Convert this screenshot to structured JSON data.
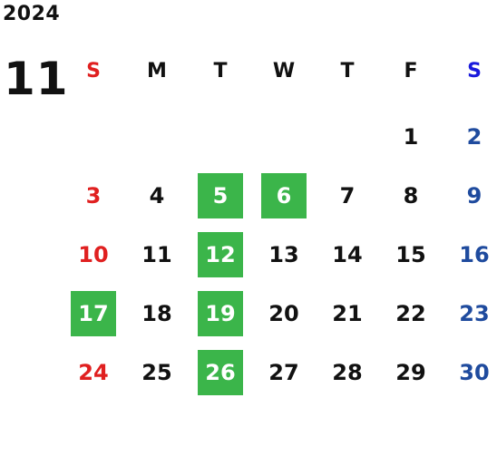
{
  "calendar": {
    "year": "2024",
    "month": "11",
    "weekdays": [
      "S",
      "M",
      "T",
      "W",
      "T",
      "F",
      "S"
    ],
    "weekday_colors": {
      "sunday": "#e02020",
      "saturday_header": "#1a1adc",
      "saturday": "#1f4b9e",
      "weekday": "#111111",
      "highlight_bg": "#3bb54a",
      "highlight_text": "#ffffff"
    },
    "first_weekday_index": 5,
    "days_in_month": 30,
    "highlighted_days": [
      5,
      6,
      12,
      17,
      19,
      26
    ],
    "days": [
      "1",
      "2",
      "3",
      "4",
      "5",
      "6",
      "7",
      "8",
      "9",
      "10",
      "11",
      "12",
      "13",
      "14",
      "15",
      "16",
      "17",
      "18",
      "19",
      "20",
      "21",
      "22",
      "23",
      "24",
      "25",
      "26",
      "27",
      "28",
      "29",
      "30"
    ]
  }
}
